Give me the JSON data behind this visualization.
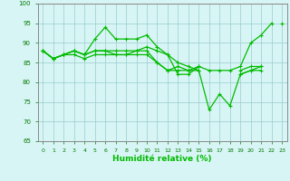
{
  "x": [
    0,
    1,
    2,
    3,
    4,
    5,
    6,
    7,
    8,
    9,
    10,
    11,
    12,
    13,
    14,
    15,
    16,
    17,
    18,
    19,
    20,
    21,
    22,
    23
  ],
  "line1": [
    88,
    86,
    87,
    88,
    87,
    91,
    94,
    91,
    91,
    91,
    92,
    89,
    87,
    82,
    82,
    84,
    83,
    83,
    83,
    84,
    90,
    92,
    95,
    null
  ],
  "line2": [
    88,
    86,
    87,
    88,
    87,
    88,
    88,
    88,
    88,
    88,
    88,
    85,
    83,
    84,
    83,
    84,
    null,
    null,
    null,
    83,
    84,
    84,
    null,
    null
  ],
  "line3": [
    88,
    86,
    87,
    88,
    87,
    88,
    88,
    87,
    87,
    87,
    87,
    85,
    83,
    83,
    83,
    83,
    null,
    null,
    null,
    82,
    83,
    83,
    null,
    null
  ],
  "line4": [
    88,
    86,
    87,
    87,
    86,
    87,
    87,
    87,
    87,
    88,
    89,
    88,
    87,
    85,
    84,
    83,
    73,
    77,
    74,
    82,
    83,
    84,
    null,
    95
  ],
  "ylim": [
    65,
    100
  ],
  "xlim": [
    -0.5,
    23.5
  ],
  "yticks": [
    65,
    70,
    75,
    80,
    85,
    90,
    95,
    100
  ],
  "xticks": [
    0,
    1,
    2,
    3,
    4,
    5,
    6,
    7,
    8,
    9,
    10,
    11,
    12,
    13,
    14,
    15,
    16,
    17,
    18,
    19,
    20,
    21,
    22,
    23
  ],
  "xlabel": "Humidité relative (%)",
  "line_color": "#00bb00",
  "bg_color": "#d8f5f5",
  "grid_color": "#99cccc",
  "marker": "+",
  "markersize": 3,
  "linewidth": 0.9
}
